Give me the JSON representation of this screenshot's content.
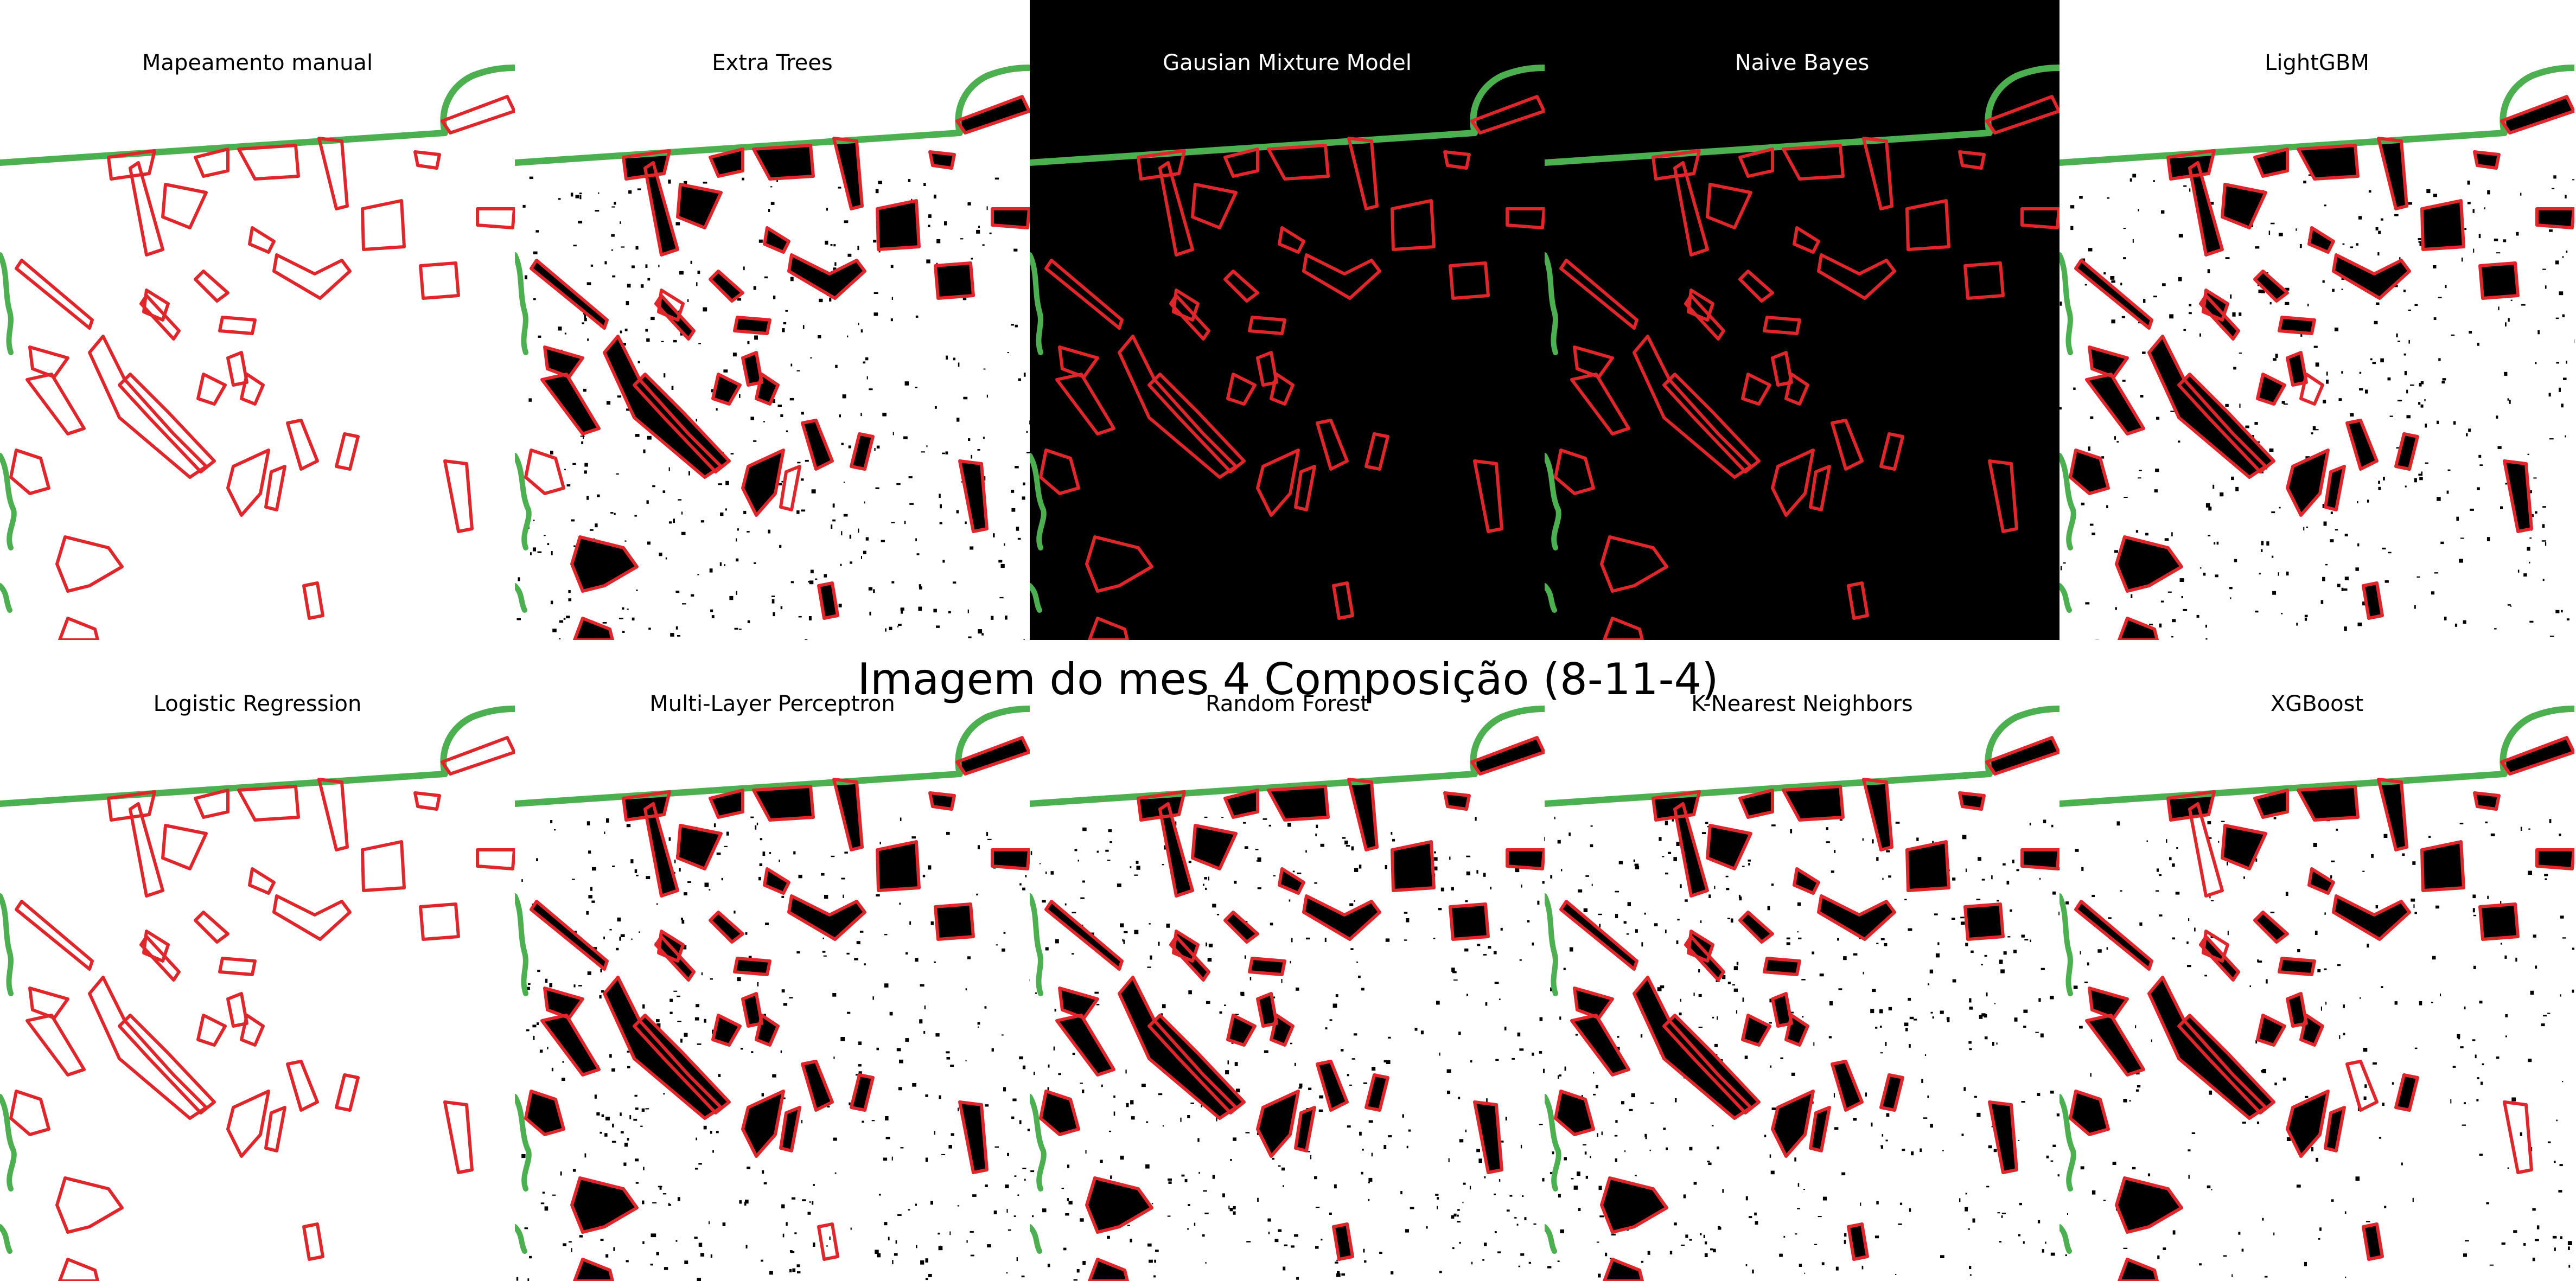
{
  "figure": {
    "title": "Imagem do mes 4 Composição (8-11-4)",
    "panels": [
      {
        "id": "manual",
        "title": "Mapeamento manual",
        "background": "#ffffff",
        "detections": "none"
      },
      {
        "id": "extra-trees",
        "title": "Extra Trees",
        "background": "#ffffff",
        "detections": "dense"
      },
      {
        "id": "gmm",
        "title": "Gausian Mixture Model",
        "background": "#000000",
        "detections": "none"
      },
      {
        "id": "naive-bayes",
        "title": "Naive Bayes",
        "background": "#000000",
        "detections": "none"
      },
      {
        "id": "lightgbm",
        "title": "LightGBM",
        "background": "#ffffff",
        "detections": "dense"
      },
      {
        "id": "logistic-regression",
        "title": "Logistic Regression",
        "background": "#ffffff",
        "detections": "none"
      },
      {
        "id": "mlp",
        "title": "Multi-Layer Perceptron",
        "background": "#ffffff",
        "detections": "dense"
      },
      {
        "id": "random-forest",
        "title": "Random Forest",
        "background": "#ffffff",
        "detections": "dense"
      },
      {
        "id": "knn",
        "title": "K-Nearest Neighbors",
        "background": "#ffffff",
        "detections": "dense"
      },
      {
        "id": "xgboost",
        "title": "XGBoost",
        "background": "#ffffff",
        "detections": "sparse"
      }
    ]
  },
  "colors": {
    "polygon_outline": "#e0262b",
    "boundary_line": "#4caf50",
    "detection_fill": "#000000"
  }
}
